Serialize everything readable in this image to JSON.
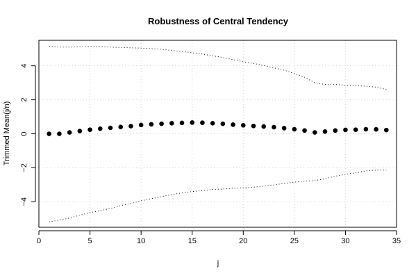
{
  "chart_data": {
    "type": "scatter",
    "title": "Robustness of Central Tendency",
    "xlabel": "j",
    "ylabel": "Trimmed Mean(j/n)",
    "xlim": [
      0,
      35
    ],
    "ylim": [
      -5.5,
      5.5
    ],
    "x_ticks": [
      0,
      5,
      10,
      15,
      20,
      25,
      30,
      35
    ],
    "y_ticks": [
      -4,
      -2,
      0,
      2,
      4
    ],
    "grid": true,
    "legend": "none",
    "series": [
      {
        "role": "trimmed-mean",
        "style": "points",
        "color": "#000000",
        "x": [
          1,
          2,
          3,
          4,
          5,
          6,
          7,
          8,
          9,
          10,
          11,
          12,
          13,
          14,
          15,
          16,
          17,
          18,
          19,
          20,
          21,
          22,
          23,
          24,
          25,
          26,
          27,
          28,
          29,
          30,
          31,
          32,
          33,
          34
        ],
        "y": [
          0.0,
          0.0,
          0.08,
          0.16,
          0.24,
          0.3,
          0.35,
          0.4,
          0.45,
          0.52,
          0.56,
          0.59,
          0.62,
          0.64,
          0.66,
          0.65,
          0.62,
          0.59,
          0.54,
          0.5,
          0.46,
          0.43,
          0.39,
          0.33,
          0.27,
          0.19,
          0.08,
          0.13,
          0.19,
          0.23,
          0.24,
          0.27,
          0.26,
          0.22
        ]
      },
      {
        "role": "upper-bound",
        "style": "dotted-line",
        "color": "#000000",
        "x": [
          1,
          2,
          3,
          4,
          5,
          6,
          7,
          8,
          9,
          10,
          11,
          12,
          13,
          14,
          15,
          16,
          17,
          18,
          19,
          20,
          21,
          22,
          23,
          24,
          25,
          26,
          27,
          28,
          29,
          30,
          31,
          32,
          33,
          34
        ],
        "y": [
          5.15,
          5.1,
          5.1,
          5.12,
          5.13,
          5.12,
          5.1,
          5.08,
          5.06,
          5.04,
          5.01,
          4.97,
          4.9,
          4.84,
          4.77,
          4.69,
          4.59,
          4.49,
          4.36,
          4.24,
          4.14,
          4.02,
          3.88,
          3.74,
          3.54,
          3.33,
          3.0,
          2.9,
          2.9,
          2.86,
          2.83,
          2.8,
          2.74,
          2.61
        ]
      },
      {
        "role": "lower-bound",
        "style": "dotted-line",
        "color": "#000000",
        "x": [
          1,
          2,
          3,
          4,
          5,
          6,
          7,
          8,
          9,
          10,
          11,
          12,
          13,
          14,
          15,
          16,
          17,
          18,
          19,
          20,
          21,
          22,
          23,
          24,
          25,
          26,
          27,
          28,
          29,
          30,
          31,
          32,
          33,
          34
        ],
        "y": [
          -5.18,
          -5.08,
          -4.96,
          -4.79,
          -4.64,
          -4.52,
          -4.39,
          -4.23,
          -4.1,
          -3.94,
          -3.82,
          -3.7,
          -3.58,
          -3.48,
          -3.4,
          -3.34,
          -3.27,
          -3.25,
          -3.2,
          -3.18,
          -3.14,
          -3.08,
          -3.01,
          -2.92,
          -2.84,
          -2.78,
          -2.76,
          -2.64,
          -2.5,
          -2.38,
          -2.3,
          -2.18,
          -2.14,
          -2.14
        ]
      }
    ]
  }
}
